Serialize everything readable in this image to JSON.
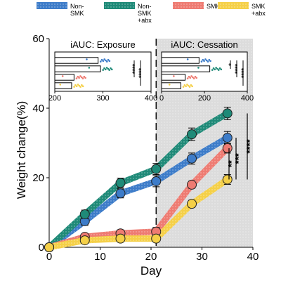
{
  "chart_data": {
    "type": "line",
    "legend": {
      "placement": "top",
      "entries": [
        {
          "lines": [
            "Non-",
            "SMK"
          ],
          "color": "#3d7cc9"
        },
        {
          "lines": [
            "Non-",
            "SMK",
            "+abx"
          ],
          "color": "#1f8a78"
        },
        {
          "lines": [
            "SMK"
          ],
          "color": "#ee7b72"
        },
        {
          "lines": [
            "SMK",
            "+abx"
          ],
          "color": "#f5d048"
        }
      ]
    },
    "xlabel": "Day",
    "ylabel": "Weight change(%)",
    "xlim": [
      0,
      40
    ],
    "ylim": [
      0,
      60
    ],
    "xticks": [
      "0",
      "10",
      "20",
      "30",
      "40"
    ],
    "yticks": [
      "0",
      "20",
      "40",
      "60"
    ],
    "cessation_start_day": 21,
    "shaded_region": [
      21,
      40
    ],
    "series": [
      {
        "key": "nonsmk",
        "color": "#3d7cc9",
        "x": [
          0,
          7,
          14,
          21,
          28,
          35
        ],
        "y": [
          0,
          7.5,
          15.5,
          19,
          25.5,
          31.5
        ],
        "err": [
          0.5,
          1.2,
          1.3,
          1.6,
          1.6,
          1.8
        ]
      },
      {
        "key": "nonsmk_abx",
        "color": "#1f8a78",
        "x": [
          0,
          7,
          14,
          21,
          28,
          35
        ],
        "y": [
          0,
          9.5,
          18.5,
          22.5,
          32.5,
          38.5
        ],
        "err": [
          0.5,
          1.2,
          1.4,
          1.6,
          1.8,
          1.8
        ]
      },
      {
        "key": "smk",
        "color": "#ee7b72",
        "x": [
          0,
          7,
          14,
          21,
          28,
          35
        ],
        "y": [
          0,
          3,
          4,
          4.5,
          18,
          28.5
        ],
        "err": [
          0.5,
          0.8,
          1,
          1.2,
          1,
          1.4
        ]
      },
      {
        "key": "smk_abx",
        "color": "#f5d048",
        "x": [
          0,
          7,
          14,
          21,
          28,
          35
        ],
        "y": [
          0,
          2,
          2.5,
          2.5,
          12.5,
          19.5
        ],
        "err": [
          0.5,
          0.8,
          0.8,
          0.9,
          1,
          1.4
        ]
      }
    ],
    "significance": [
      {
        "label": "****",
        "between": [
          "nonsmk_abx",
          "smk_abx"
        ]
      },
      {
        "label": "***",
        "between": [
          "nonsmk",
          "smk_abx"
        ]
      },
      {
        "label": "**",
        "between": [
          "smk",
          "smk_abx"
        ]
      }
    ],
    "insets": [
      {
        "title": "iAUC: Exposure",
        "type": "bar",
        "orientation": "horizontal",
        "xlim": [
          200,
          400
        ],
        "xticks": [
          "200",
          "300",
          "400"
        ],
        "values": {
          "nonsmk": 290,
          "nonsmk_abx": 295,
          "smk": 240,
          "smk_abx": 235
        },
        "significance": [
          {
            "label": "****",
            "between": [
              "nonsmk",
              "smk"
            ]
          },
          {
            "label": "****",
            "between": [
              "nonsmk",
              "smk_abx"
            ]
          }
        ]
      },
      {
        "title": "iAUC: Cessation",
        "type": "bar",
        "orientation": "horizontal",
        "xlim": [
          0,
          400
        ],
        "xticks": [
          "0",
          "200",
          "400"
        ],
        "values": {
          "nonsmk": 175,
          "nonsmk_abx": 225,
          "smk": 110,
          "smk_abx": 90
        },
        "significance": [
          {
            "label": "*",
            "between": [
              "nonsmk",
              "nonsmk_abx"
            ]
          },
          {
            "label": "****",
            "between": [
              "nonsmk",
              "smk"
            ]
          },
          {
            "label": "****",
            "between": [
              "nonsmk",
              "smk_abx"
            ]
          }
        ]
      }
    ]
  }
}
